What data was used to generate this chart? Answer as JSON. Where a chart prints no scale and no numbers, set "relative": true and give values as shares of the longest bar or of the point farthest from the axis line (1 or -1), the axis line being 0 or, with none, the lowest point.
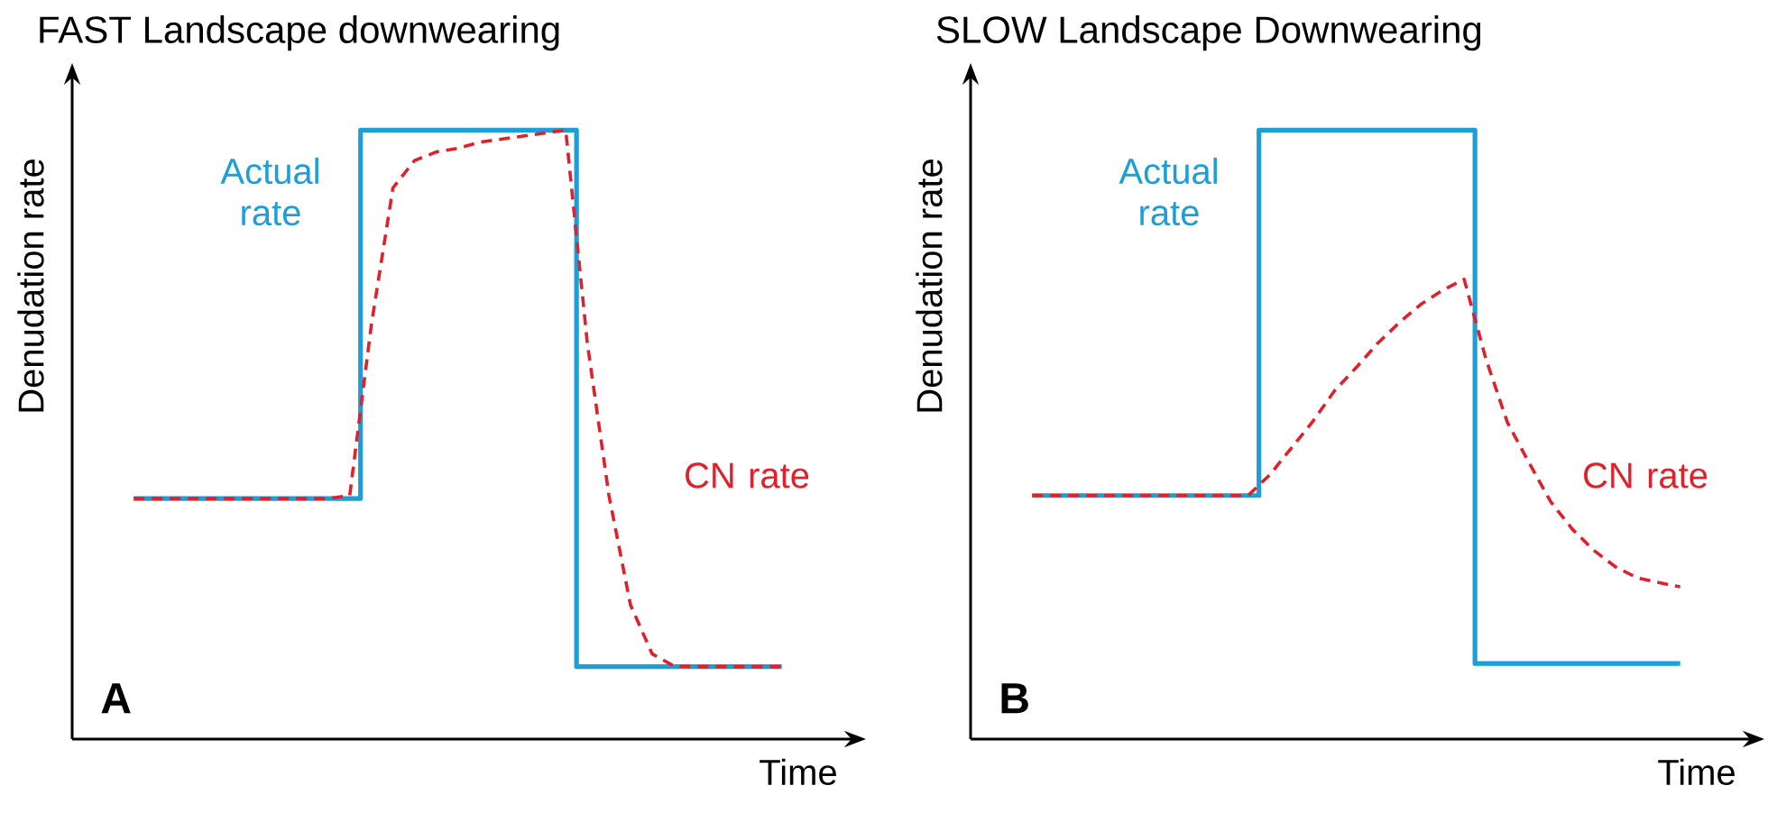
{
  "chart_data": [
    {
      "type": "line",
      "title": "FAST Landscape downwearing",
      "xlabel": "Time",
      "ylabel": "Denudation rate",
      "annotations": [
        "A"
      ],
      "relative": true,
      "categories": [
        null,
        null,
        null,
        null,
        null,
        null,
        null,
        null,
        null,
        null,
        null,
        null,
        null,
        null,
        null,
        null,
        null,
        null,
        null,
        null,
        null,
        null,
        null,
        null,
        null,
        null,
        null,
        null,
        null,
        null,
        null
      ],
      "series": [
        {
          "name": "Actual rate",
          "type": "step",
          "color": "#1a9fd8",
          "line_style": "solid",
          "values": [
            0.395,
            0.395,
            0.395,
            0.395,
            0.395,
            0.395,
            0.395,
            0.395,
            0.395,
            0.395,
            0.395,
            1,
            1,
            1,
            1,
            1,
            1,
            1,
            1,
            1,
            1,
            0.119,
            0.119,
            0.119,
            0.119,
            0.119,
            0.119,
            0.119,
            0.119,
            0.119,
            0.119
          ]
        },
        {
          "name": "CN rate",
          "type": "line",
          "color": "#e0202a",
          "line_style": "dashed",
          "values": [
            0.395,
            0.395,
            0.395,
            0.395,
            0.395,
            0.395,
            0.395,
            0.395,
            0.395,
            0.395,
            0.4,
            0.68,
            0.905,
            0.95,
            0.964,
            0.97,
            0.98,
            0.985,
            0.99,
            0.995,
            1,
            0.65,
            0.4,
            0.22,
            0.14,
            0.12,
            0.119,
            0.119,
            0.119,
            0.119,
            0.119
          ]
        }
      ]
    },
    {
      "type": "line",
      "title": "SLOW Landscape Downwearing",
      "xlabel": "Time",
      "ylabel": "Denudation rate",
      "annotations": [
        "B"
      ],
      "relative": true,
      "categories": [
        null,
        null,
        null,
        null,
        null,
        null,
        null,
        null,
        null,
        null,
        null,
        null,
        null,
        null,
        null,
        null,
        null,
        null,
        null,
        null,
        null,
        null,
        null,
        null,
        null,
        null,
        null,
        null,
        null,
        null,
        null
      ],
      "series": [
        {
          "name": "Actual rate",
          "type": "step",
          "color": "#1a9fd8",
          "line_style": "solid",
          "values": [
            0.4,
            0.4,
            0.4,
            0.4,
            0.4,
            0.4,
            0.4,
            0.4,
            0.4,
            0.4,
            0.4,
            1,
            1,
            1,
            1,
            1,
            1,
            1,
            1,
            1,
            1,
            0.124,
            0.124,
            0.124,
            0.124,
            0.124,
            0.124,
            0.124,
            0.124,
            0.124,
            0.124
          ]
        },
        {
          "name": "CN rate",
          "type": "line",
          "color": "#e0202a",
          "line_style": "dashed",
          "values": [
            0.4,
            0.4,
            0.4,
            0.4,
            0.4,
            0.4,
            0.4,
            0.4,
            0.4,
            0.4,
            0.4,
            0.434,
            0.478,
            0.522,
            0.572,
            0.61,
            0.65,
            0.684,
            0.714,
            0.737,
            0.755,
            0.625,
            0.52,
            0.454,
            0.39,
            0.345,
            0.31,
            0.283,
            0.265,
            0.257,
            0.25
          ]
        }
      ]
    }
  ]
}
